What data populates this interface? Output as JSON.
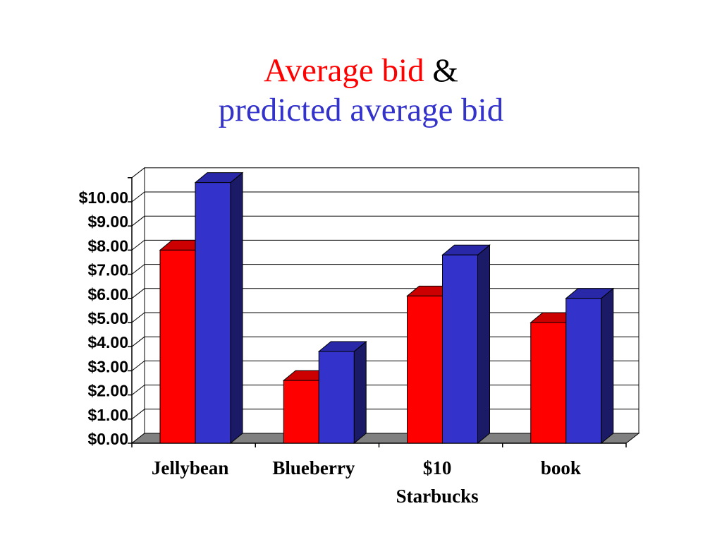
{
  "title": {
    "line1_red": "Average bid",
    "line1_black": "&",
    "line2_blue": "predicted average bid"
  },
  "chart_data": {
    "type": "bar",
    "categories": [
      [
        "Jellybean"
      ],
      [
        "Blueberry"
      ],
      [
        "$10",
        "Starbucks"
      ],
      [
        "book"
      ]
    ],
    "series": [
      {
        "values": [
          8.0,
          2.6,
          6.1,
          5.0
        ],
        "color": "#ff0000",
        "top_color": "#cc0000",
        "side_color": "#990000"
      },
      {
        "values": [
          10.8,
          3.8,
          7.8,
          6.0
        ],
        "color": "#3333cc",
        "top_color": "#2828a8",
        "side_color": "#1a1a66"
      }
    ],
    "y_ticks": [
      "$0.00",
      "$1.00",
      "$2.00",
      "$3.00",
      "$4.00",
      "$5.00",
      "$6.00",
      "$7.00",
      "$8.00",
      "$9.00",
      "$10.00"
    ],
    "ylim": [
      0,
      11
    ],
    "grid": true,
    "floor_color": "#808080"
  }
}
